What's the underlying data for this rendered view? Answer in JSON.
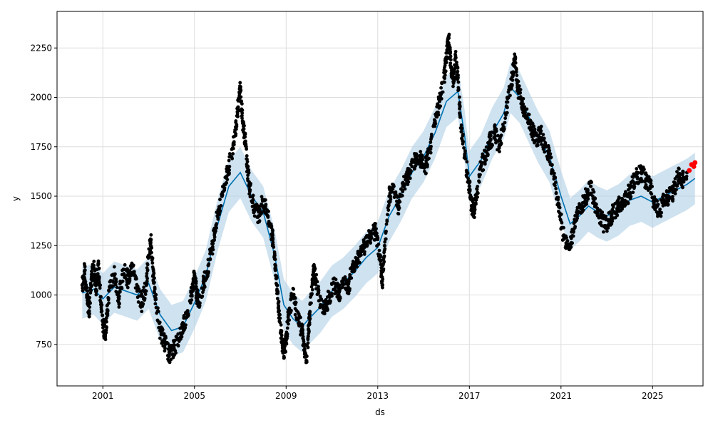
{
  "chart_data": {
    "type": "scatter",
    "xlabel": "ds",
    "ylabel": "y",
    "xlim": [
      1999.0,
      2027.2
    ],
    "ylim": [
      540,
      2435
    ],
    "x_ticks": [
      {
        "value": 2001,
        "label": "2001"
      },
      {
        "value": 2005,
        "label": "2005"
      },
      {
        "value": 2009,
        "label": "2009"
      },
      {
        "value": 2013,
        "label": "2013"
      },
      {
        "value": 2017,
        "label": "2017"
      },
      {
        "value": 2021,
        "label": "2021"
      },
      {
        "value": 2025,
        "label": "2025"
      }
    ],
    "y_ticks": [
      {
        "value": 750,
        "label": "750"
      },
      {
        "value": 1000,
        "label": "1000"
      },
      {
        "value": 1250,
        "label": "1250"
      },
      {
        "value": 1500,
        "label": "1500"
      },
      {
        "value": 1750,
        "label": "1750"
      },
      {
        "value": 2000,
        "label": "2000"
      },
      {
        "value": 2250,
        "label": "2250"
      }
    ],
    "grid": true,
    "colors": {
      "observed": "#000000",
      "forecast": "#0072B2",
      "interval": "#AFCFE6",
      "recent_observed": "#FF0000",
      "grid": "#DDDDDD",
      "axis": "#000000"
    },
    "series": [
      {
        "role": "observed",
        "points": [
          [
            2000.1,
            1050
          ],
          [
            2000.2,
            1120
          ],
          [
            2000.3,
            1000
          ],
          [
            2000.4,
            920
          ],
          [
            2000.5,
            1080
          ],
          [
            2000.6,
            1150
          ],
          [
            2000.7,
            1020
          ],
          [
            2000.8,
            1160
          ],
          [
            2000.9,
            990
          ],
          [
            2001.0,
            850
          ],
          [
            2001.1,
            800
          ],
          [
            2001.2,
            920
          ],
          [
            2001.3,
            1040
          ],
          [
            2001.5,
            1100
          ],
          [
            2001.7,
            980
          ],
          [
            2001.9,
            1130
          ],
          [
            2002.1,
            1080
          ],
          [
            2002.3,
            1150
          ],
          [
            2002.5,
            1020
          ],
          [
            2002.7,
            960
          ],
          [
            2002.9,
            1060
          ],
          [
            2003.0,
            1200
          ],
          [
            2003.1,
            1280
          ],
          [
            2003.2,
            1100
          ],
          [
            2003.3,
            980
          ],
          [
            2003.5,
            820
          ],
          [
            2003.7,
            760
          ],
          [
            2003.9,
            700
          ],
          [
            2004.1,
            730
          ],
          [
            2004.3,
            780
          ],
          [
            2004.5,
            840
          ],
          [
            2004.7,
            920
          ],
          [
            2004.9,
            1020
          ],
          [
            2005.0,
            1100
          ],
          [
            2005.1,
            1000
          ],
          [
            2005.2,
            960
          ],
          [
            2005.4,
            1060
          ],
          [
            2005.6,
            1150
          ],
          [
            2005.8,
            1260
          ],
          [
            2006.0,
            1400
          ],
          [
            2006.2,
            1500
          ],
          [
            2006.4,
            1600
          ],
          [
            2006.6,
            1700
          ],
          [
            2006.8,
            1850
          ],
          [
            2006.9,
            1950
          ],
          [
            2007.0,
            2050
          ],
          [
            2007.1,
            1880
          ],
          [
            2007.2,
            1800
          ],
          [
            2007.3,
            1650
          ],
          [
            2007.4,
            1550
          ],
          [
            2007.6,
            1450
          ],
          [
            2007.8,
            1400
          ],
          [
            2008.0,
            1480
          ],
          [
            2008.2,
            1400
          ],
          [
            2008.4,
            1300
          ],
          [
            2008.5,
            1200
          ],
          [
            2008.6,
            1050
          ],
          [
            2008.7,
            900
          ],
          [
            2008.8,
            780
          ],
          [
            2008.9,
            720
          ],
          [
            2009.0,
            760
          ],
          [
            2009.1,
            900
          ],
          [
            2009.3,
            1000
          ],
          [
            2009.5,
            880
          ],
          [
            2009.7,
            820
          ],
          [
            2009.8,
            720
          ],
          [
            2009.9,
            690
          ],
          [
            2010.0,
            850
          ],
          [
            2010.1,
            1000
          ],
          [
            2010.2,
            1120
          ],
          [
            2010.3,
            1080
          ],
          [
            2010.5,
            950
          ],
          [
            2010.7,
            920
          ],
          [
            2010.9,
            1000
          ],
          [
            2011.1,
            1060
          ],
          [
            2011.3,
            1000
          ],
          [
            2011.5,
            1080
          ],
          [
            2011.7,
            1020
          ],
          [
            2011.9,
            1150
          ],
          [
            2012.1,
            1180
          ],
          [
            2012.3,
            1220
          ],
          [
            2012.5,
            1260
          ],
          [
            2012.7,
            1300
          ],
          [
            2012.9,
            1320
          ],
          [
            2013.1,
            1200
          ],
          [
            2013.2,
            1050
          ],
          [
            2013.3,
            1250
          ],
          [
            2013.5,
            1500
          ],
          [
            2013.7,
            1550
          ],
          [
            2013.9,
            1450
          ],
          [
            2014.1,
            1550
          ],
          [
            2014.3,
            1600
          ],
          [
            2014.5,
            1650
          ],
          [
            2014.7,
            1700
          ],
          [
            2014.9,
            1680
          ],
          [
            2015.1,
            1650
          ],
          [
            2015.3,
            1750
          ],
          [
            2015.5,
            1880
          ],
          [
            2015.7,
            1980
          ],
          [
            2015.9,
            2100
          ],
          [
            2016.0,
            2200
          ],
          [
            2016.1,
            2300
          ],
          [
            2016.2,
            2150
          ],
          [
            2016.3,
            2080
          ],
          [
            2016.4,
            2200
          ],
          [
            2016.5,
            2100
          ],
          [
            2016.6,
            1900
          ],
          [
            2016.8,
            1700
          ],
          [
            2017.0,
            1550
          ],
          [
            2017.1,
            1450
          ],
          [
            2017.2,
            1420
          ],
          [
            2017.3,
            1500
          ],
          [
            2017.5,
            1650
          ],
          [
            2017.7,
            1700
          ],
          [
            2017.9,
            1780
          ],
          [
            2018.1,
            1820
          ],
          [
            2018.3,
            1750
          ],
          [
            2018.5,
            1850
          ],
          [
            2018.7,
            2000
          ],
          [
            2018.9,
            2120
          ],
          [
            2019.0,
            2200
          ],
          [
            2019.1,
            2050
          ],
          [
            2019.3,
            1980
          ],
          [
            2019.5,
            1900
          ],
          [
            2019.7,
            1850
          ],
          [
            2019.9,
            1780
          ],
          [
            2020.1,
            1820
          ],
          [
            2020.3,
            1760
          ],
          [
            2020.5,
            1700
          ],
          [
            2020.7,
            1600
          ],
          [
            2020.9,
            1450
          ],
          [
            2021.1,
            1300
          ],
          [
            2021.3,
            1250
          ],
          [
            2021.5,
            1300
          ],
          [
            2021.7,
            1400
          ],
          [
            2021.9,
            1450
          ],
          [
            2022.1,
            1500
          ],
          [
            2022.3,
            1550
          ],
          [
            2022.5,
            1450
          ],
          [
            2022.7,
            1400
          ],
          [
            2022.9,
            1350
          ],
          [
            2023.1,
            1380
          ],
          [
            2023.3,
            1420
          ],
          [
            2023.5,
            1450
          ],
          [
            2023.7,
            1480
          ],
          [
            2023.9,
            1500
          ],
          [
            2024.1,
            1550
          ],
          [
            2024.3,
            1600
          ],
          [
            2024.5,
            1620
          ],
          [
            2024.7,
            1580
          ],
          [
            2024.9,
            1550
          ],
          [
            2025.1,
            1450
          ],
          [
            2025.3,
            1420
          ],
          [
            2025.5,
            1480
          ],
          [
            2025.7,
            1500
          ],
          [
            2025.9,
            1520
          ],
          [
            2026.1,
            1600
          ],
          [
            2026.3,
            1580
          ],
          [
            2026.5,
            1620
          ]
        ]
      },
      {
        "role": "recent_observed",
        "points": [
          [
            2026.6,
            1630
          ],
          [
            2026.7,
            1660
          ],
          [
            2026.8,
            1650
          ],
          [
            2026.85,
            1670
          ]
        ]
      },
      {
        "role": "forecast",
        "points": [
          [
            2000.1,
            1010
          ],
          [
            2000.6,
            1030
          ],
          [
            2001.0,
            980
          ],
          [
            2001.5,
            1040
          ],
          [
            2002.0,
            1020
          ],
          [
            2002.5,
            1000
          ],
          [
            2003.0,
            1060
          ],
          [
            2003.5,
            900
          ],
          [
            2004.0,
            820
          ],
          [
            2004.5,
            840
          ],
          [
            2005.0,
            960
          ],
          [
            2005.5,
            1100
          ],
          [
            2006.0,
            1350
          ],
          [
            2006.5,
            1550
          ],
          [
            2007.0,
            1620
          ],
          [
            2007.5,
            1500
          ],
          [
            2008.0,
            1420
          ],
          [
            2008.5,
            1200
          ],
          [
            2008.9,
            950
          ],
          [
            2009.3,
            880
          ],
          [
            2009.7,
            840
          ],
          [
            2010.0,
            880
          ],
          [
            2010.5,
            940
          ],
          [
            2011.0,
            1020
          ],
          [
            2011.5,
            1060
          ],
          [
            2012.0,
            1120
          ],
          [
            2012.5,
            1190
          ],
          [
            2013.0,
            1240
          ],
          [
            2013.5,
            1400
          ],
          [
            2014.0,
            1500
          ],
          [
            2014.5,
            1620
          ],
          [
            2015.0,
            1700
          ],
          [
            2015.5,
            1820
          ],
          [
            2016.0,
            1980
          ],
          [
            2016.5,
            2030
          ],
          [
            2016.8,
            1800
          ],
          [
            2017.0,
            1600
          ],
          [
            2017.5,
            1680
          ],
          [
            2018.0,
            1820
          ],
          [
            2018.5,
            1920
          ],
          [
            2018.8,
            2050
          ],
          [
            2019.2,
            2000
          ],
          [
            2019.6,
            1900
          ],
          [
            2020.0,
            1800
          ],
          [
            2020.5,
            1700
          ],
          [
            2021.0,
            1500
          ],
          [
            2021.4,
            1360
          ],
          [
            2021.8,
            1400
          ],
          [
            2022.2,
            1450
          ],
          [
            2022.6,
            1420
          ],
          [
            2023.0,
            1400
          ],
          [
            2023.5,
            1430
          ],
          [
            2024.0,
            1480
          ],
          [
            2024.5,
            1500
          ],
          [
            2025.0,
            1470
          ],
          [
            2025.5,
            1500
          ],
          [
            2026.0,
            1530
          ],
          [
            2026.5,
            1560
          ],
          [
            2026.85,
            1590
          ]
        ]
      }
    ]
  }
}
